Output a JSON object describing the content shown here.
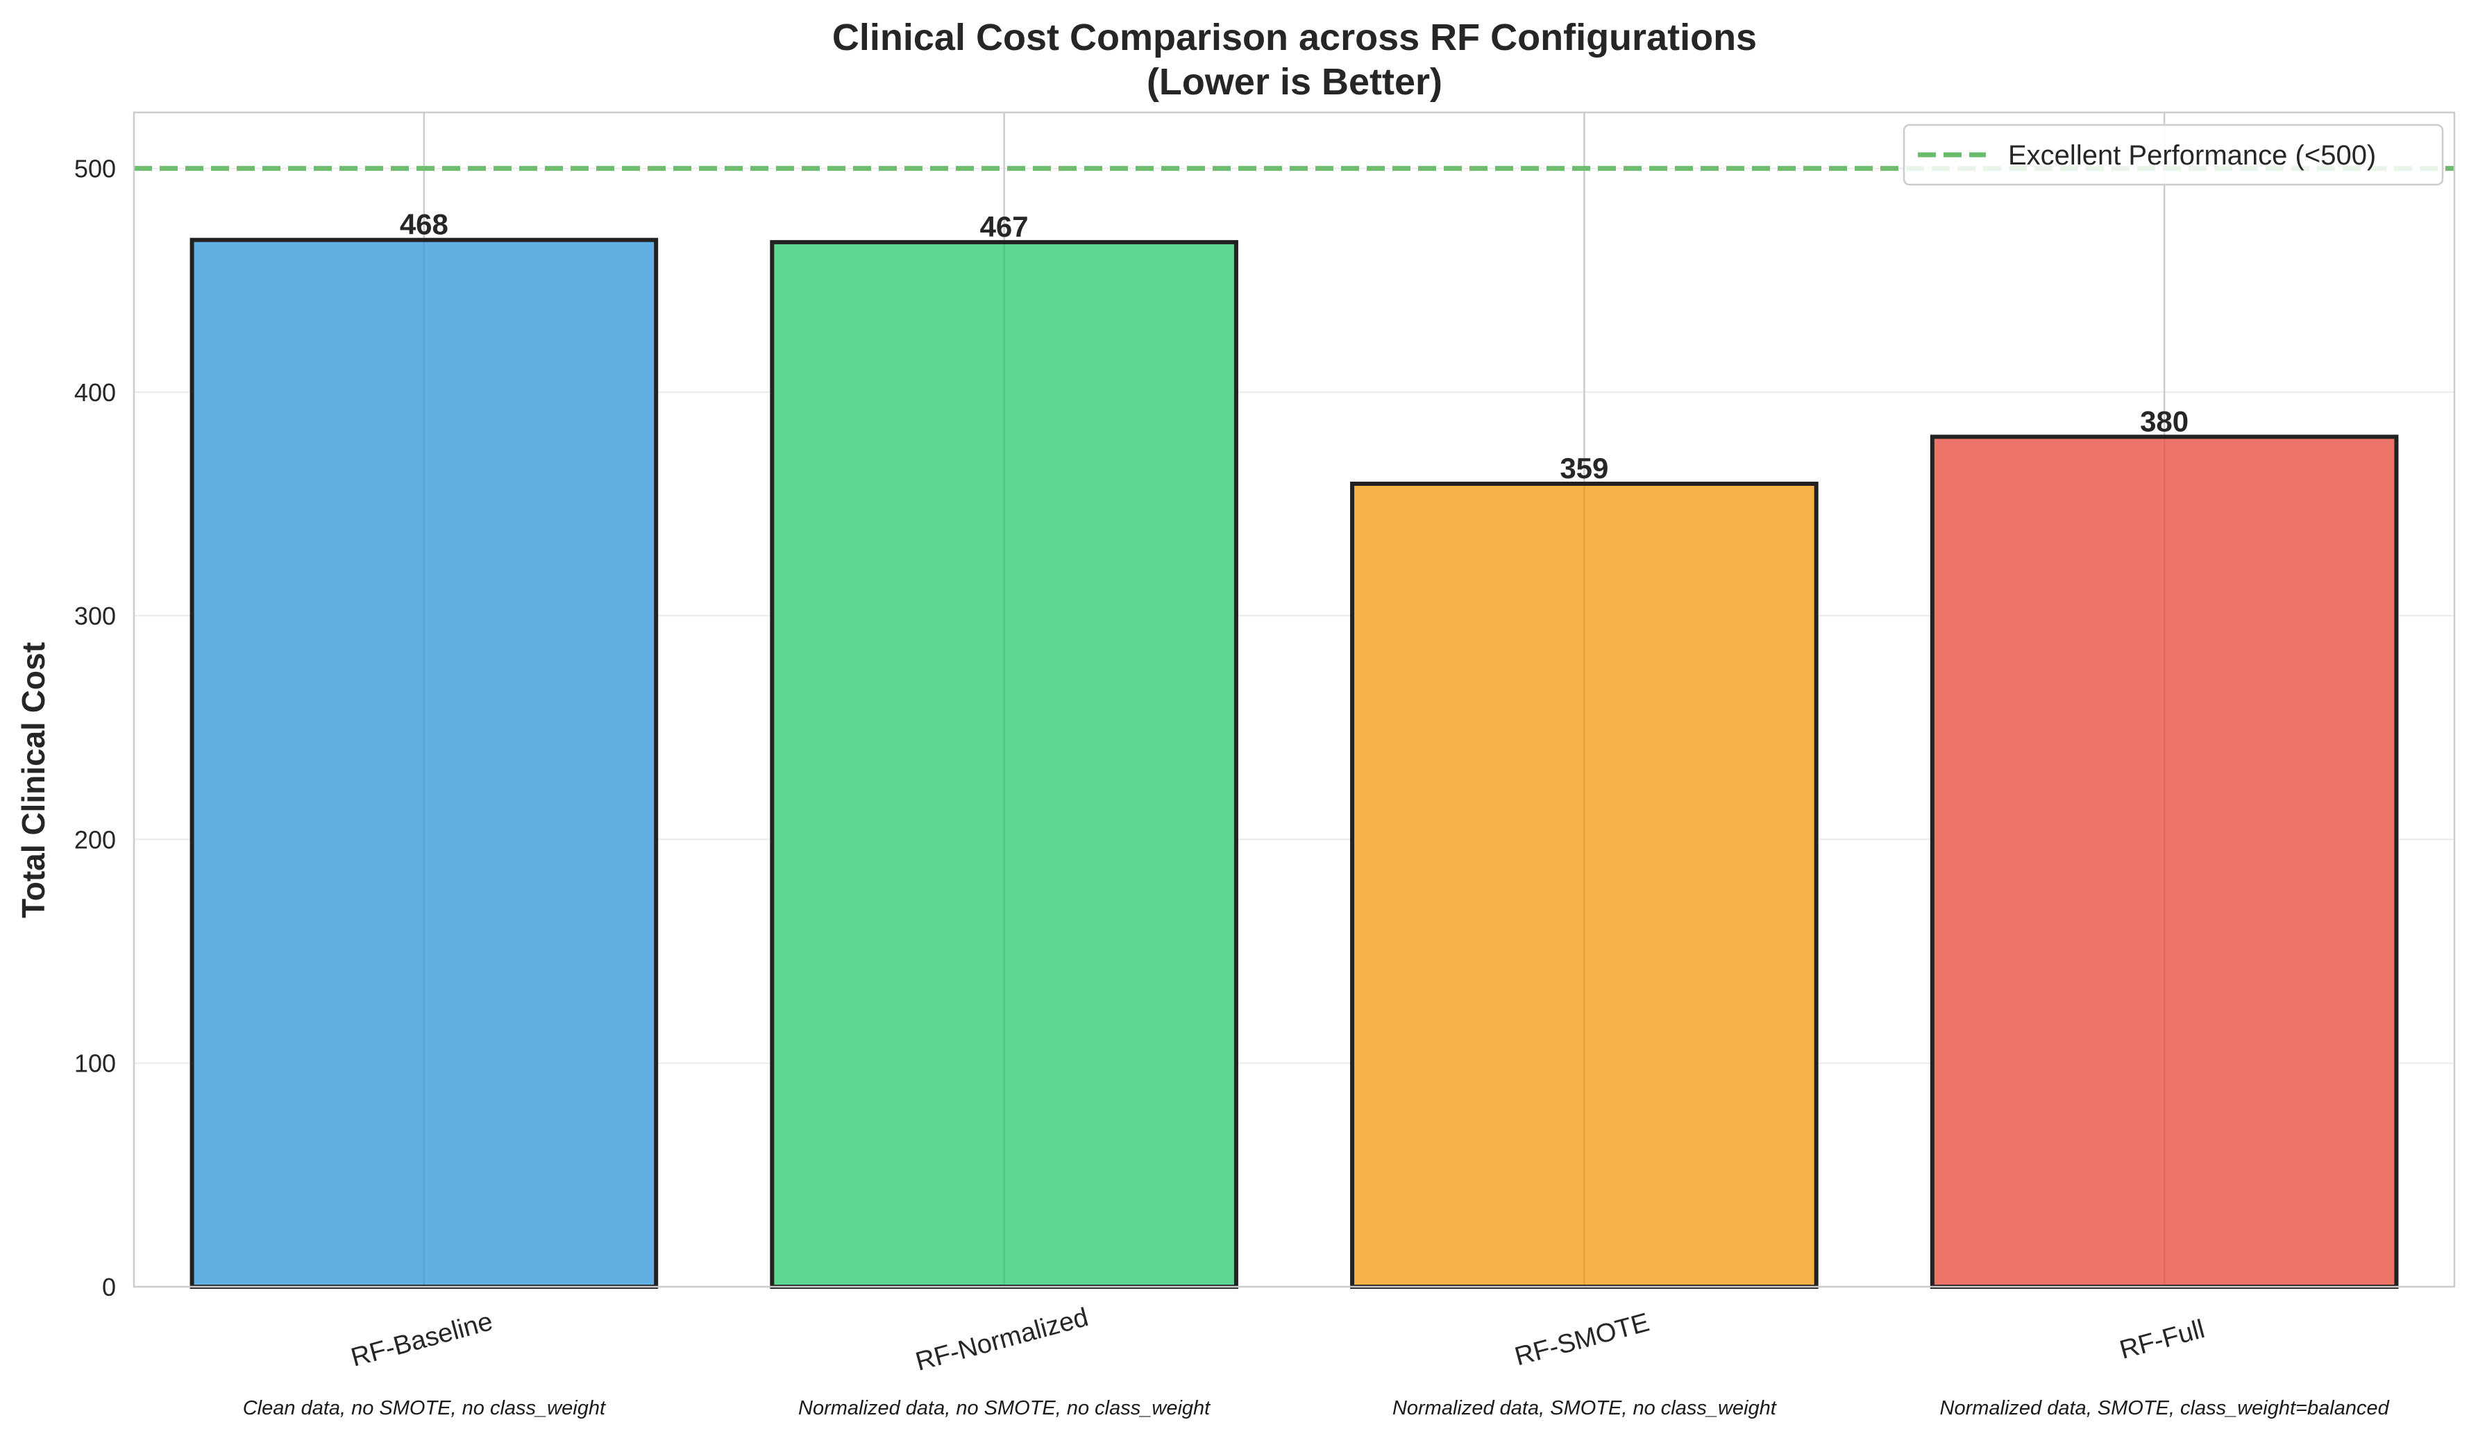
{
  "chart_data": {
    "type": "bar",
    "title": "Clinical Cost Comparison across RF Configurations",
    "subtitle": "(Lower is Better)",
    "xlabel": "",
    "ylabel": "Total Clinical Cost",
    "ylim": [
      0,
      525
    ],
    "yticks": [
      "0",
      "100",
      "200",
      "300",
      "400",
      "500"
    ],
    "grid": true,
    "legend_position": "top-right",
    "categories": [
      "RF-Baseline",
      "RF-Normalized",
      "RF-SMOTE",
      "RF-Full"
    ],
    "descriptions": [
      "Clean data, no SMOTE, no class_weight",
      "Normalized data, no SMOTE, no class_weight",
      "Normalized data, SMOTE, no class_weight",
      "Normalized data, SMOTE, class_weight=balanced"
    ],
    "values": [
      468,
      467,
      359,
      380
    ],
    "value_labels": [
      "468",
      "467",
      "359",
      "380"
    ],
    "bar_colors": [
      "#5DADE2",
      "#58D68D",
      "#F5B041",
      "#EC7063"
    ],
    "reference_line": {
      "value": 500,
      "label": "Excellent Performance (<500)",
      "color": "#6DBB6D",
      "style": "dashed"
    }
  }
}
